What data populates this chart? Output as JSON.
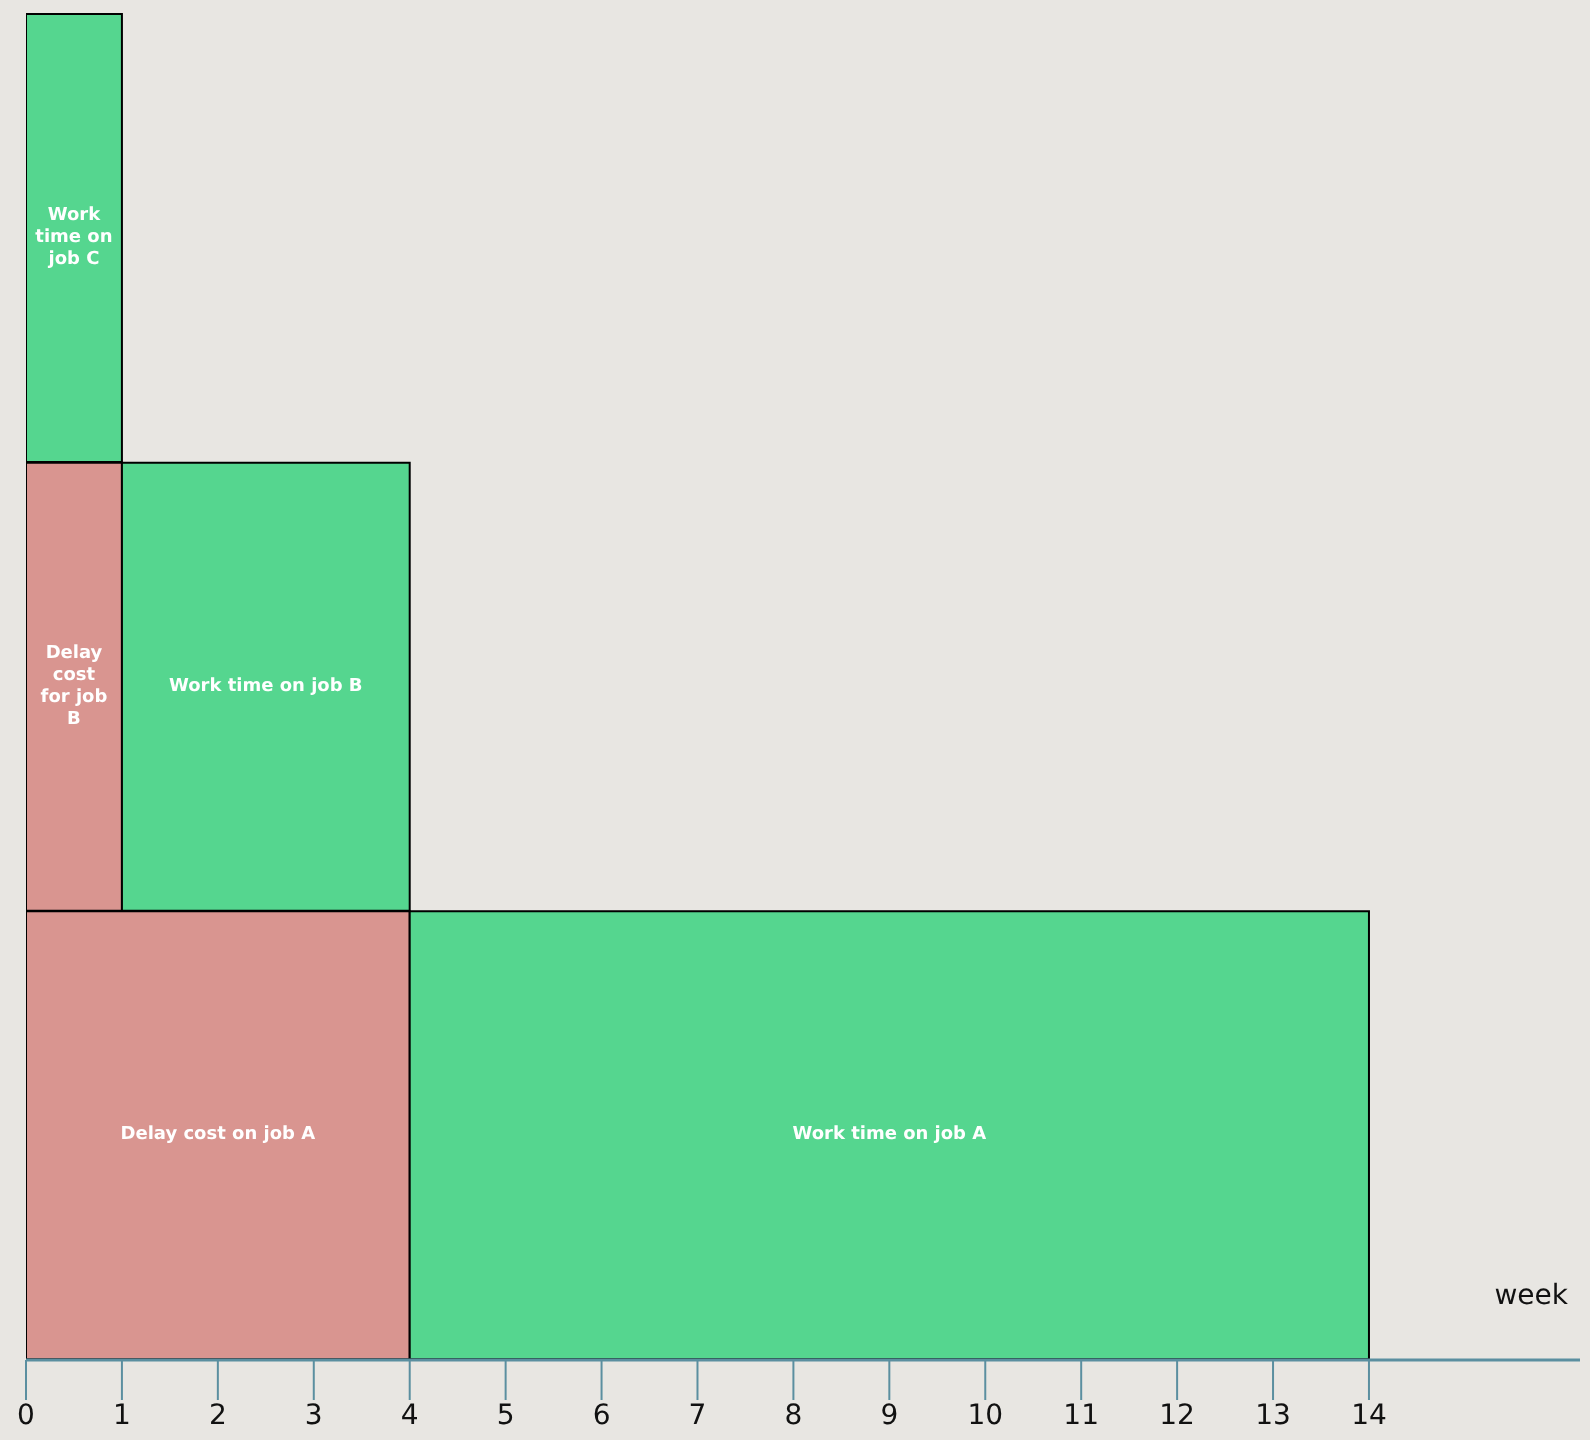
{
  "chart_data": {
    "type": "bar",
    "orientation": "horizontal",
    "stacked": true,
    "relative": false,
    "xlabel": "week",
    "categories": [
      null,
      null,
      null
    ],
    "series": [
      {
        "name": "Delay cost on job A",
        "color": "#d99590",
        "values": [
          null,
          null,
          4
        ]
      },
      {
        "name": "Delay cost for job B",
        "color": "#d99590",
        "values": [
          null,
          1,
          null
        ]
      },
      {
        "name": "Work time on job C",
        "color": "#55d68f",
        "values": [
          1,
          null,
          null
        ]
      },
      {
        "name": "Work time on job B",
        "color": "#55d68f",
        "values": [
          null,
          3,
          null
        ]
      },
      {
        "name": "Work time on job A",
        "color": "#55d68f",
        "values": [
          null,
          null,
          10
        ]
      }
    ],
    "xlim": [
      0,
      16.2
    ],
    "xticks": [
      0,
      1,
      2,
      3,
      4,
      5,
      6,
      7,
      8,
      9,
      10,
      11,
      12,
      13,
      14
    ],
    "tick_labels": "x",
    "grid": false,
    "legend": false
  }
}
